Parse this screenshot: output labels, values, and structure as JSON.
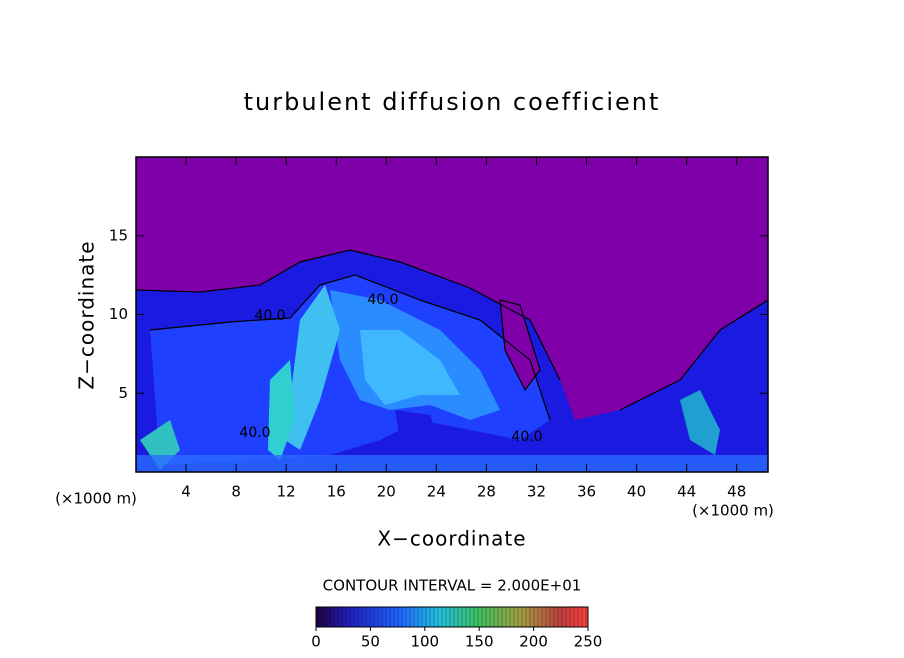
{
  "chart_data": {
    "type": "contour",
    "title": "turbulent diffusion coefficient",
    "x_label": "X−coordinate",
    "y_label": "Z−coordinate",
    "x_unit_left": "(×1000 m)",
    "x_unit_right": "(×1000 m)",
    "xlim": [
      0,
      50.5
    ],
    "xticks": [
      4,
      8,
      12,
      16,
      20,
      24,
      28,
      32,
      36,
      40,
      44,
      48
    ],
    "ylim": [
      0,
      20
    ],
    "yticks": [
      5,
      10,
      15
    ],
    "contour_labels": [
      "40.0",
      "40.0",
      "40.0",
      "40.0"
    ],
    "contour_interval_text": "CONTOUR INTERVAL = 2.000E+01",
    "colorbar": {
      "lim": [
        0,
        250
      ],
      "ticks": [
        0,
        50,
        100,
        150,
        200,
        250
      ]
    }
  }
}
